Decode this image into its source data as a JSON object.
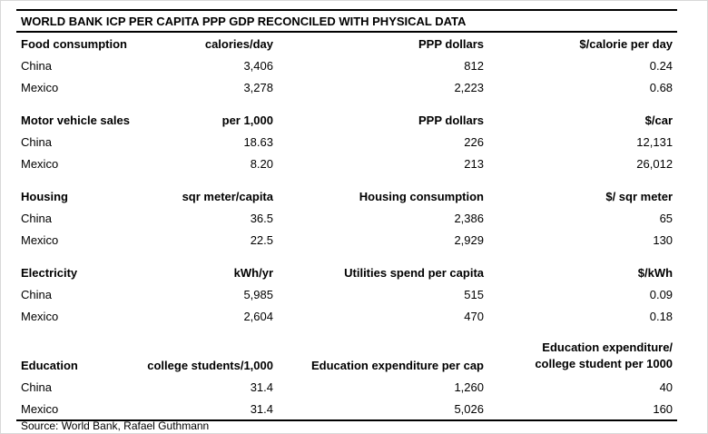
{
  "chart_data": {
    "type": "table",
    "title": "WORLD BANK ICP PER CAPITA PPP GDP RECONCILED WITH PHYSICAL DATA",
    "source": "Source: World Bank, Rafael Guthmann",
    "layout": {
      "columns": 4,
      "row_label_column_align": "left",
      "value_columns_align": "right",
      "grid": "off",
      "rules": [
        "above-title",
        "below-title",
        "below-last-row"
      ]
    },
    "sections": [
      {
        "label": "Food consumption",
        "unit": "calories/day",
        "spend": "PPP dollars",
        "price": "$/calorie per day",
        "rows": [
          {
            "country": "China",
            "values": [
              "3,406",
              "812",
              "0.24"
            ]
          },
          {
            "country": "Mexico",
            "values": [
              "3,278",
              "2,223",
              "0.68"
            ]
          }
        ]
      },
      {
        "label": "Motor vehicle sales",
        "unit": "per 1,000",
        "spend": "PPP dollars",
        "price": "$/car",
        "rows": [
          {
            "country": "China",
            "values": [
              "18.63",
              "226",
              "12,131"
            ]
          },
          {
            "country": "Mexico",
            "values": [
              "8.20",
              "213",
              "26,012"
            ]
          }
        ]
      },
      {
        "label": "Housing",
        "unit": "sqr meter/capita",
        "spend": "Housing consumption",
        "price": "$/ sqr meter",
        "rows": [
          {
            "country": "China",
            "values": [
              "36.5",
              "2,386",
              "65"
            ]
          },
          {
            "country": "Mexico",
            "values": [
              "22.5",
              "2,929",
              "130"
            ]
          }
        ]
      },
      {
        "label": "Electricity",
        "unit": "kWh/yr",
        "spend": "Utilities spend per capita",
        "price": "$/kWh",
        "rows": [
          {
            "country": "China",
            "values": [
              "5,985",
              "515",
              "0.09"
            ]
          },
          {
            "country": "Mexico",
            "values": [
              "2,604",
              "470",
              "0.18"
            ]
          }
        ]
      },
      {
        "label": "Education",
        "unit": "college students/1,000",
        "spend": "Education expenditure per cap",
        "price_line1": "Education expenditure/",
        "price_line2": "college student per 1000",
        "rows": [
          {
            "country": "China",
            "values": [
              "31.4",
              "1,260",
              "40"
            ]
          },
          {
            "country": "Mexico",
            "values": [
              "31.4",
              "5,026",
              "160"
            ]
          }
        ]
      }
    ]
  }
}
